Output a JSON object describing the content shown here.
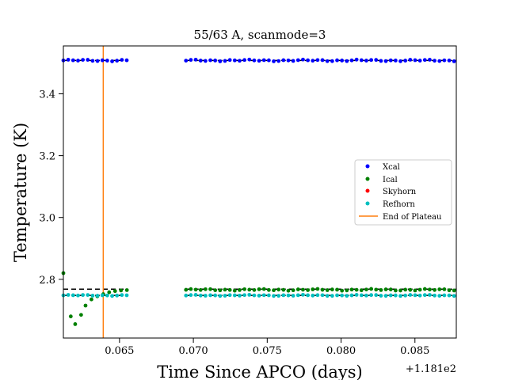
{
  "chart_data": {
    "type": "scatter",
    "title": "55/63 A, scanmode=3",
    "xlabel": "Time Since APCO (days)",
    "ylabel": "Temperature (K)",
    "x_offset_label": "+1.181e2",
    "xlim": [
      0.0612,
      0.0878
    ],
    "ylim": [
      2.61,
      3.555
    ],
    "x_ticks": [
      0.065,
      0.07,
      0.075,
      0.08,
      0.085
    ],
    "x_tick_labels": [
      "0.065",
      "0.070",
      "0.075",
      "0.080",
      "0.085"
    ],
    "y_ticks": [
      2.8,
      3.0,
      3.2,
      3.4
    ],
    "y_tick_labels": [
      "2.8",
      "3.0",
      "3.2",
      "3.4"
    ],
    "grid": false,
    "legend_position": "center-right",
    "legend": [
      "Xcal",
      "Ical",
      "Skyhorn",
      "Refhorn",
      "End of Plateau"
    ],
    "colors": {
      "Xcal": "#0000ff",
      "Ical": "#008000",
      "Skyhorn": "#ff0000",
      "Refhorn": "#00bfbf",
      "End of Plateau": "#ff7f0e",
      "dashed": "#000000"
    },
    "segments": [
      [
        0.0612,
        0.0655
      ],
      [
        0.0695,
        0.0878
      ]
    ],
    "end_of_plateau": 0.0639,
    "reference_lines": [
      {
        "y": 3.508,
        "x_ranges": [
          [
            0.0612,
            0.0655
          ],
          [
            0.0695,
            0.0878
          ]
        ]
      },
      {
        "y": 2.768,
        "x_ranges": [
          [
            0.0612,
            0.0655
          ],
          [
            0.0695,
            0.0878
          ]
        ]
      },
      {
        "y": 2.748,
        "x_ranges": [
          [
            0.0612,
            0.0655
          ],
          [
            0.0695,
            0.0878
          ]
        ]
      }
    ],
    "series": [
      {
        "name": "Xcal",
        "base": 3.508,
        "noise": 0.003
      },
      {
        "name": "Ical",
        "base": 2.766,
        "noise": 0.003,
        "transient": [
          {
            "x": 0.0612,
            "y": 2.82
          },
          {
            "x": 0.0617,
            "y": 2.68
          },
          {
            "x": 0.062,
            "y": 2.655
          },
          {
            "x": 0.0624,
            "y": 2.685
          },
          {
            "x": 0.0627,
            "y": 2.715
          },
          {
            "x": 0.0631,
            "y": 2.735
          },
          {
            "x": 0.0635,
            "y": 2.745
          },
          {
            "x": 0.0639,
            "y": 2.752
          },
          {
            "x": 0.0643,
            "y": 2.758
          },
          {
            "x": 0.0647,
            "y": 2.762
          },
          {
            "x": 0.0651,
            "y": 2.764
          },
          {
            "x": 0.0655,
            "y": 2.765
          }
        ]
      },
      {
        "name": "Skyhorn",
        "base": 2.748,
        "noise": 0.0
      },
      {
        "name": "Refhorn",
        "base": 2.748,
        "noise": 0.002
      }
    ]
  }
}
